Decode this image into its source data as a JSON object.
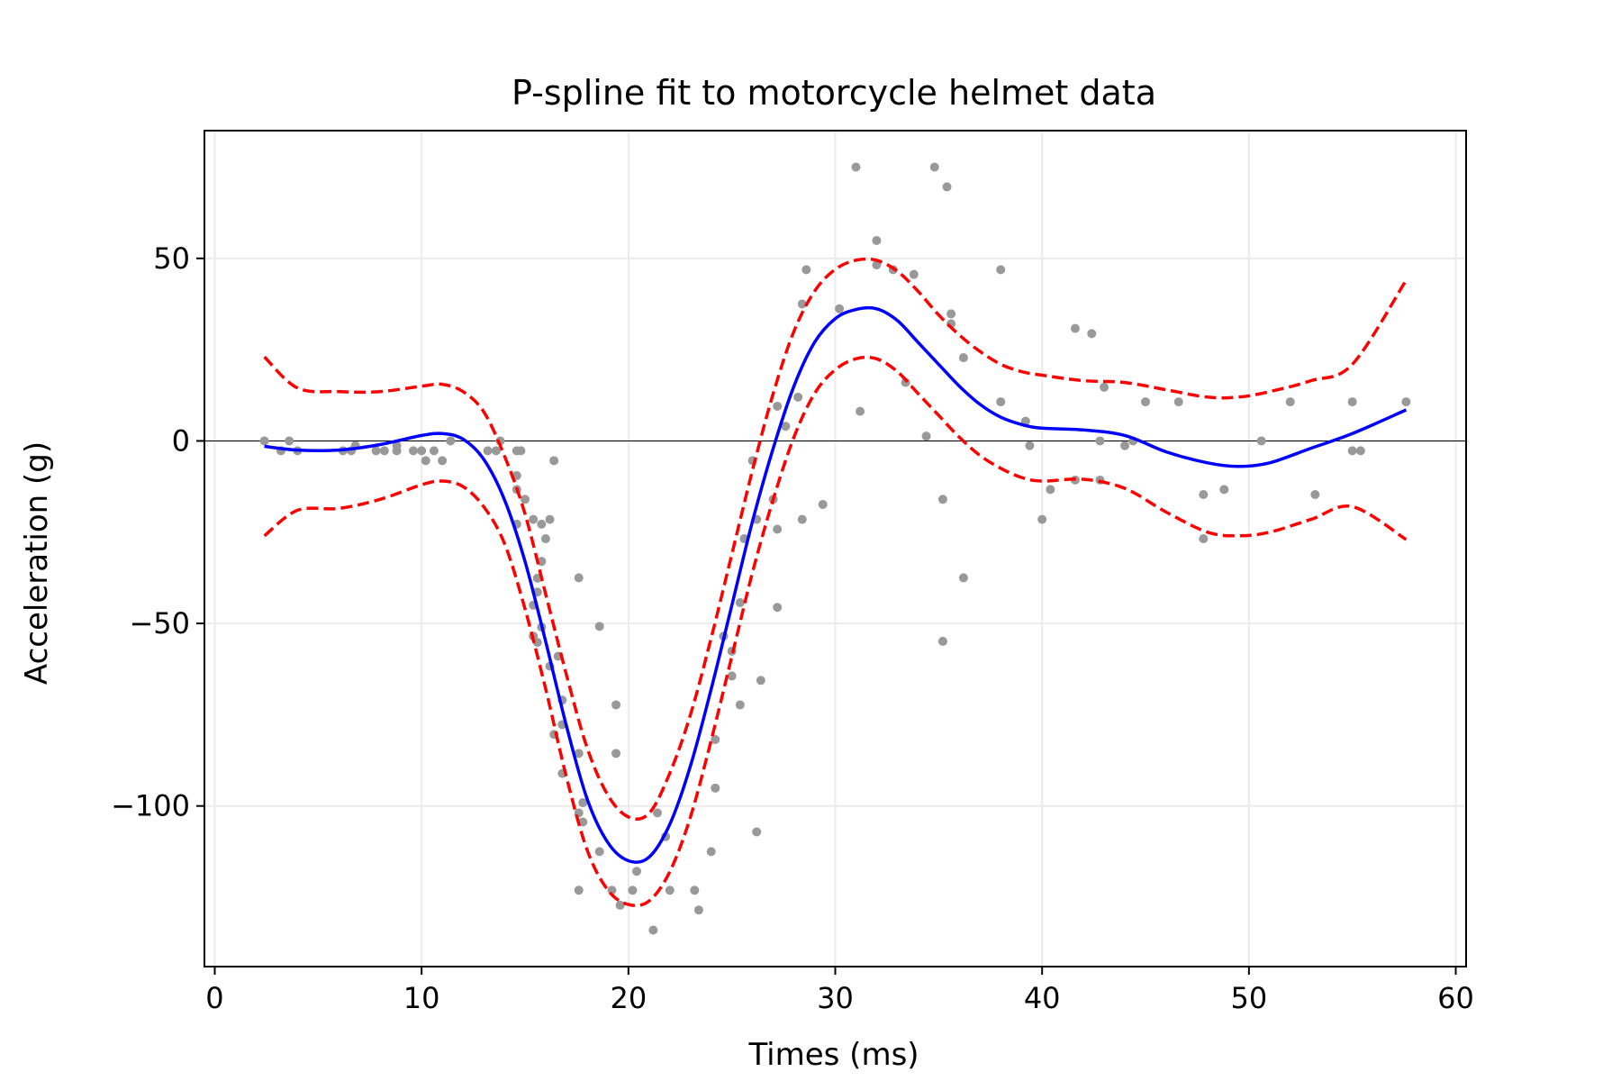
{
  "chart_data": {
    "type": "scatter",
    "title": "P-spline fit to motorcycle helmet data",
    "xlabel": "Times (ms)",
    "ylabel": "Acceleration (g)",
    "xlim": [
      -0.5,
      60.5
    ],
    "ylim": [
      -144,
      85
    ],
    "xticks": [
      0,
      10,
      20,
      30,
      40,
      50,
      60
    ],
    "yticks": [
      -100,
      -50,
      0,
      50
    ],
    "ytick_labels": [
      "−100",
      "−50",
      "0",
      "50"
    ],
    "grid": true,
    "zero_line": true,
    "colors": {
      "points": "#999999",
      "fit": "#0000ff",
      "bands": "#ff0000"
    },
    "points": [
      [
        2.4,
        0.0
      ],
      [
        3.2,
        -2.7
      ],
      [
        3.6,
        0.0
      ],
      [
        4.0,
        -2.7
      ],
      [
        6.2,
        -2.7
      ],
      [
        6.6,
        -2.7
      ],
      [
        6.8,
        -1.3
      ],
      [
        7.8,
        -2.7
      ],
      [
        8.2,
        -2.7
      ],
      [
        8.8,
        -1.3
      ],
      [
        8.8,
        -2.7
      ],
      [
        9.6,
        -2.7
      ],
      [
        10.0,
        -2.7
      ],
      [
        10.2,
        -5.4
      ],
      [
        10.6,
        -2.7
      ],
      [
        11.0,
        -5.4
      ],
      [
        11.4,
        0.0
      ],
      [
        13.2,
        -2.7
      ],
      [
        13.6,
        -2.7
      ],
      [
        13.8,
        0.0
      ],
      [
        14.6,
        -13.3
      ],
      [
        14.6,
        -2.7
      ],
      [
        14.6,
        -22.8
      ],
      [
        14.6,
        -9.5
      ],
      [
        14.8,
        -2.7
      ],
      [
        15.0,
        -16.0
      ],
      [
        15.4,
        -21.5
      ],
      [
        15.4,
        -45.0
      ],
      [
        15.4,
        -53.5
      ],
      [
        15.6,
        -37.6
      ],
      [
        15.6,
        -41.4
      ],
      [
        15.6,
        -55.2
      ],
      [
        15.8,
        -22.8
      ],
      [
        15.8,
        -51.0
      ],
      [
        15.8,
        -33.0
      ],
      [
        16.0,
        -26.8
      ],
      [
        16.2,
        -61.7
      ],
      [
        16.2,
        -21.5
      ],
      [
        16.4,
        -80.4
      ],
      [
        16.4,
        -5.4
      ],
      [
        16.6,
        -59.0
      ],
      [
        16.8,
        -71.0
      ],
      [
        16.8,
        -91.1
      ],
      [
        16.8,
        -77.7
      ],
      [
        17.6,
        -37.5
      ],
      [
        17.6,
        -85.6
      ],
      [
        17.6,
        -123.1
      ],
      [
        17.6,
        -101.9
      ],
      [
        17.8,
        -99.1
      ],
      [
        17.8,
        -104.4
      ],
      [
        18.6,
        -112.5
      ],
      [
        18.6,
        -50.8
      ],
      [
        19.2,
        -123.1
      ],
      [
        19.4,
        -85.6
      ],
      [
        19.4,
        -72.3
      ],
      [
        19.6,
        -127.2
      ],
      [
        20.2,
        -123.1
      ],
      [
        20.4,
        -117.9
      ],
      [
        21.2,
        -134.0
      ],
      [
        21.4,
        -101.9
      ],
      [
        21.8,
        -108.4
      ],
      [
        22.0,
        -123.1
      ],
      [
        23.2,
        -123.1
      ],
      [
        23.4,
        -128.5
      ],
      [
        24.0,
        -112.5
      ],
      [
        24.2,
        -95.1
      ],
      [
        24.2,
        -81.8
      ],
      [
        24.6,
        -53.5
      ],
      [
        25.0,
        -64.4
      ],
      [
        25.0,
        -57.6
      ],
      [
        25.4,
        -72.3
      ],
      [
        25.4,
        -44.3
      ],
      [
        25.6,
        -26.8
      ],
      [
        26.0,
        -5.4
      ],
      [
        26.2,
        -107.1
      ],
      [
        26.2,
        -21.5
      ],
      [
        26.4,
        -65.6
      ],
      [
        27.0,
        -16.0
      ],
      [
        27.2,
        -45.6
      ],
      [
        27.2,
        -24.2
      ],
      [
        27.2,
        9.5
      ],
      [
        27.6,
        4.0
      ],
      [
        28.2,
        12.0
      ],
      [
        28.4,
        -21.5
      ],
      [
        28.4,
        37.5
      ],
      [
        28.6,
        46.9
      ],
      [
        29.4,
        -17.4
      ],
      [
        30.2,
        36.2
      ],
      [
        31.0,
        75.0
      ],
      [
        31.2,
        8.1
      ],
      [
        32.0,
        54.9
      ],
      [
        32.0,
        48.2
      ],
      [
        32.8,
        46.9
      ],
      [
        33.4,
        16.0
      ],
      [
        33.8,
        45.6
      ],
      [
        34.4,
        1.3
      ],
      [
        34.8,
        75.0
      ],
      [
        35.2,
        -16.0
      ],
      [
        35.2,
        -54.9
      ],
      [
        35.4,
        69.6
      ],
      [
        35.6,
        34.8
      ],
      [
        35.6,
        32.1
      ],
      [
        36.2,
        -37.5
      ],
      [
        36.2,
        22.8
      ],
      [
        38.0,
        46.9
      ],
      [
        38.0,
        10.7
      ],
      [
        39.2,
        5.4
      ],
      [
        39.4,
        -1.3
      ],
      [
        40.0,
        -21.5
      ],
      [
        40.4,
        -13.3
      ],
      [
        41.6,
        30.8
      ],
      [
        41.6,
        -10.7
      ],
      [
        42.4,
        29.4
      ],
      [
        42.8,
        0.0
      ],
      [
        42.8,
        -10.7
      ],
      [
        43.0,
        14.7
      ],
      [
        44.0,
        -1.3
      ],
      [
        44.4,
        0.0
      ],
      [
        45.0,
        10.7
      ],
      [
        46.6,
        10.7
      ],
      [
        47.8,
        -26.8
      ],
      [
        47.8,
        -14.7
      ],
      [
        48.8,
        -13.3
      ],
      [
        50.6,
        0.0
      ],
      [
        52.0,
        10.7
      ],
      [
        53.2,
        -14.7
      ],
      [
        55.0,
        -2.7
      ],
      [
        55.0,
        10.7
      ],
      [
        55.4,
        -2.7
      ],
      [
        57.6,
        10.7
      ]
    ],
    "fit_x": [
      2.4,
      4,
      6,
      8,
      10,
      11,
      12,
      13,
      14,
      15,
      16,
      17,
      18,
      19,
      20,
      21,
      22,
      23,
      24,
      25,
      26,
      27,
      28,
      29,
      30,
      31,
      32,
      33,
      34,
      35,
      36,
      37,
      38,
      39,
      40,
      42,
      44,
      46,
      48,
      49.5,
      51,
      53,
      55,
      57.6
    ],
    "fit": [
      -1.5,
      -2.5,
      -2.5,
      -1.0,
      1.5,
      2.0,
      0.5,
      -5.0,
      -16.0,
      -33.0,
      -55.0,
      -78.0,
      -98.0,
      -110.0,
      -115.0,
      -114.0,
      -105.0,
      -89.0,
      -68.0,
      -45.0,
      -22.0,
      -2.0,
      15.0,
      27.0,
      33.5,
      36.0,
      36.2,
      33.0,
      27.0,
      21.0,
      15.0,
      10.0,
      6.5,
      4.5,
      3.5,
      3.0,
      1.5,
      -3.0,
      -6.0,
      -7.0,
      -6.0,
      -2.0,
      2.0,
      8.5
    ],
    "upper": [
      23.0,
      14.5,
      13.5,
      13.5,
      15.0,
      15.5,
      13.5,
      8.0,
      -4.0,
      -20.0,
      -42.0,
      -64.0,
      -84.0,
      -97.0,
      -103.0,
      -102.0,
      -91.0,
      -75.0,
      -54.0,
      -31.0,
      -8.0,
      13.0,
      30.0,
      41.0,
      47.0,
      49.5,
      49.5,
      46.5,
      41.0,
      34.5,
      29.0,
      24.5,
      21.0,
      19.0,
      18.0,
      16.5,
      16.0,
      14.0,
      12.0,
      12.0,
      13.5,
      16.5,
      21.0,
      44.0
    ],
    "lower": [
      -26.0,
      -19.0,
      -18.5,
      -16.0,
      -12.0,
      -11.0,
      -12.5,
      -18.0,
      -28.0,
      -46.0,
      -68.0,
      -92.0,
      -112.0,
      -123.0,
      -127.0,
      -126.0,
      -118.0,
      -103.0,
      -82.0,
      -59.0,
      -36.0,
      -16.0,
      1.0,
      13.0,
      19.5,
      22.5,
      22.5,
      19.0,
      13.0,
      7.0,
      1.0,
      -4.0,
      -7.5,
      -10.0,
      -11.0,
      -10.5,
      -13.0,
      -19.5,
      -25.0,
      -26.0,
      -25.0,
      -21.5,
      -18.0,
      -27.0
    ]
  }
}
